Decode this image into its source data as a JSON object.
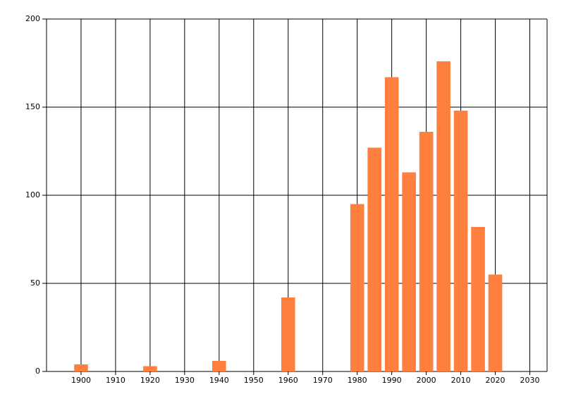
{
  "chart_data": {
    "type": "bar",
    "x": [
      1900,
      1920,
      1940,
      1960,
      1980,
      1985,
      1990,
      1995,
      2000,
      2005,
      2010,
      2015,
      2020
    ],
    "values": [
      4,
      3,
      6,
      42,
      95,
      127,
      167,
      113,
      136,
      176,
      148,
      82,
      55
    ],
    "color": "#ff7f3f",
    "xlim": [
      1890,
      2035
    ],
    "xticks": [
      1900,
      1910,
      1920,
      1930,
      1940,
      1950,
      1960,
      1970,
      1980,
      1990,
      2000,
      2010,
      2020,
      2030
    ],
    "ylim": [
      0,
      200
    ],
    "yticks": [
      0,
      50,
      100,
      150,
      200
    ],
    "grid": true
  }
}
